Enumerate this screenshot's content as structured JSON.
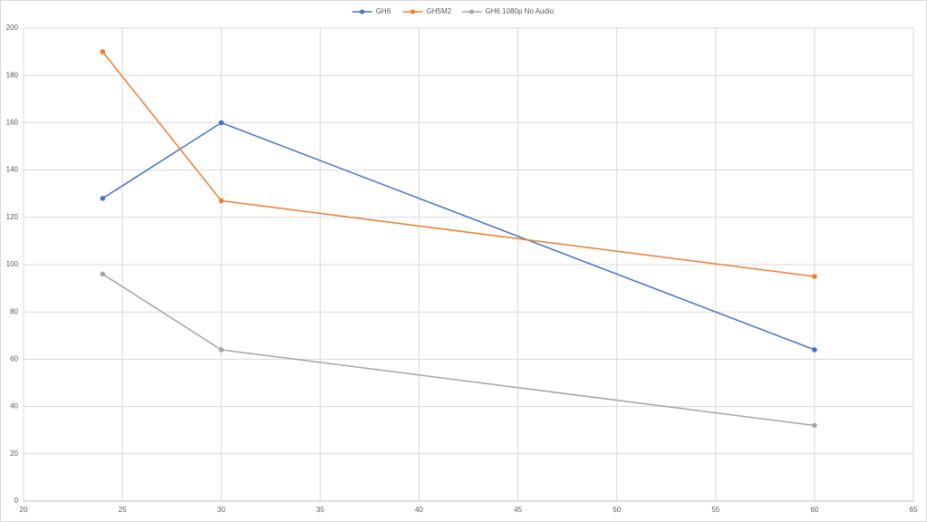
{
  "chart_data": {
    "type": "line",
    "x": [
      24,
      30,
      60
    ],
    "series": [
      {
        "name": "GH6",
        "color": "#4472c4",
        "values": [
          128,
          160,
          64
        ]
      },
      {
        "name": "GH5M2",
        "color": "#ed7d31",
        "values": [
          190,
          127,
          95
        ]
      },
      {
        "name": "GH6 1080p No Audio",
        "color": "#a5a5a5",
        "values": [
          96,
          64,
          32
        ]
      }
    ],
    "xlim": [
      20,
      65
    ],
    "xticks": [
      20,
      25,
      30,
      35,
      40,
      45,
      50,
      55,
      60,
      65
    ],
    "ylim": [
      0,
      200
    ],
    "yticks": [
      0,
      20,
      40,
      60,
      80,
      100,
      120,
      140,
      160,
      180,
      200
    ],
    "grid": true,
    "legend": "top"
  }
}
